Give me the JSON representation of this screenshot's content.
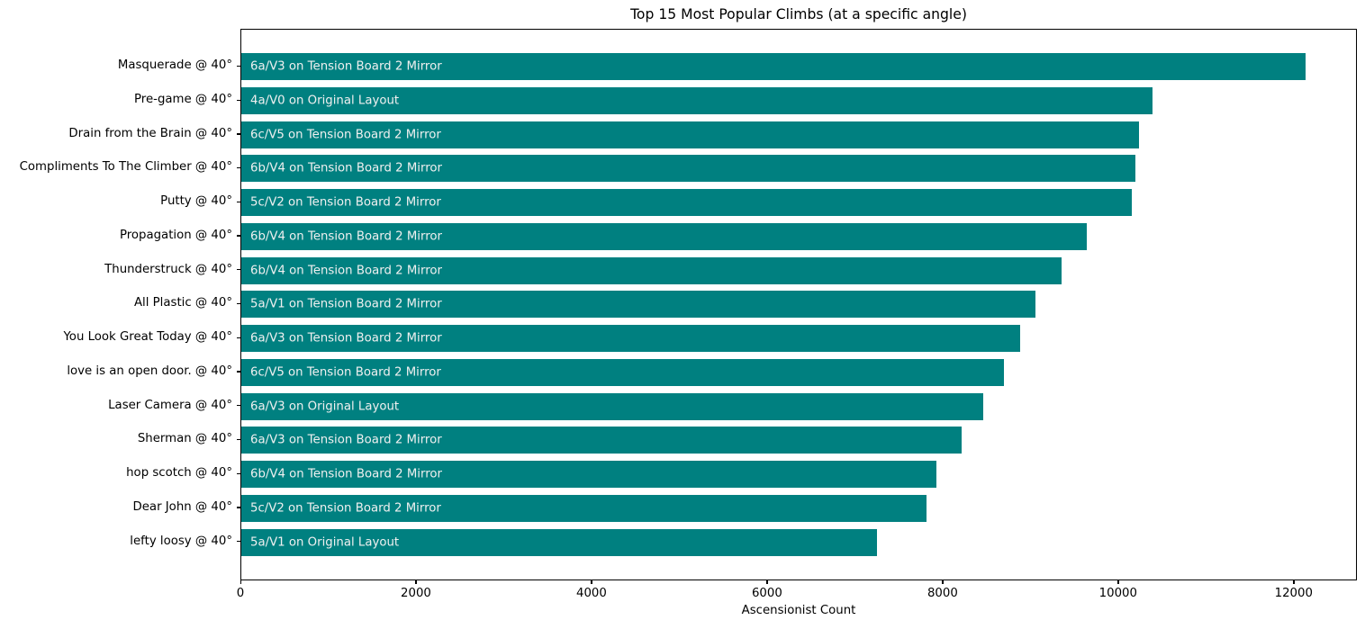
{
  "title": "Top 15 Most Popular Climbs (at a specific angle)",
  "xlabel": "Ascensionist Count",
  "accent_color": "#008080",
  "bar_label_color": "#f0f0f0",
  "chart_data": {
    "type": "bar",
    "orientation": "horizontal",
    "title": "Top 15 Most Popular Climbs (at a specific angle)",
    "xlabel": "Ascensionist Count",
    "ylabel": "",
    "xlim": [
      0,
      12720
    ],
    "x_ticks": [
      0,
      2000,
      4000,
      6000,
      8000,
      10000,
      12000
    ],
    "grid": false,
    "legend": false,
    "bar_color": "#008080",
    "categories": [
      "Masquerade @ 40°",
      "Pre-game @ 40°",
      "Drain from the Brain @ 40°",
      "Compliments To The Climber @ 40°",
      "Putty @ 40°",
      "Propagation @ 40°",
      "Thunderstruck @ 40°",
      "All Plastic @ 40°",
      "You Look Great Today @ 40°",
      "love is an open door. @ 40°",
      "Laser Camera @ 40°",
      "Sherman @ 40°",
      "hop scotch @ 40°",
      "Dear John @ 40°",
      "lefty loosy @ 40°"
    ],
    "values": [
      12120,
      10380,
      10230,
      10190,
      10150,
      9630,
      9340,
      9050,
      8870,
      8690,
      8450,
      8210,
      7920,
      7810,
      7240
    ],
    "bar_labels": [
      "6a/V3 on Tension Board 2 Mirror",
      "4a/V0 on Original Layout",
      "6c/V5 on Tension Board 2 Mirror",
      "6b/V4 on Tension Board 2 Mirror",
      "5c/V2 on Tension Board 2 Mirror",
      "6b/V4 on Tension Board 2 Mirror",
      "6b/V4 on Tension Board 2 Mirror",
      "5a/V1 on Tension Board 2 Mirror",
      "6a/V3 on Tension Board 2 Mirror",
      "6c/V5 on Tension Board 2 Mirror",
      "6a/V3 on Original Layout",
      "6a/V3 on Tension Board 2 Mirror",
      "6b/V4 on Tension Board 2 Mirror",
      "5c/V2 on Tension Board 2 Mirror",
      "5a/V1 on Original Layout"
    ]
  }
}
